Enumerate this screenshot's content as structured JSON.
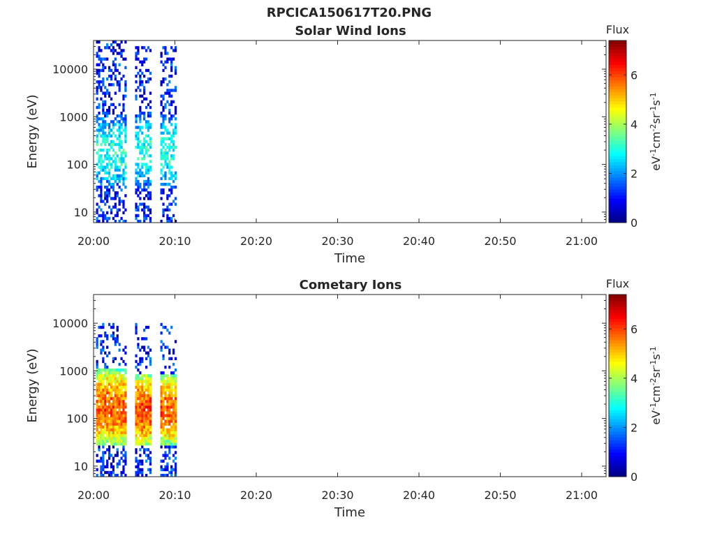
{
  "figure": {
    "title": "RPCICA150617T20.PNG"
  },
  "chart_data": [
    {
      "type": "heatmap",
      "title": "Solar Wind Ions",
      "xlabel": "Time",
      "ylabel": "Energy (eV)",
      "x_ticks": [
        "20:00",
        "20:10",
        "20:20",
        "20:30",
        "20:40",
        "20:50",
        "21:00"
      ],
      "x_range_minutes": [
        0,
        63
      ],
      "y_scale": "log",
      "y_ticks": [
        10,
        100,
        1000,
        10000
      ],
      "y_ticks_labels": [
        "10",
        "100",
        "1000",
        "10000"
      ],
      "y_range": [
        6,
        40000
      ],
      "colorbar": {
        "label": "Flux",
        "units": "eV-1cm-2sr-1s-1",
        "range": [
          0,
          7.4
        ],
        "ticks": [
          0,
          2,
          4,
          6
        ],
        "ticks_labels": [
          "0",
          "2",
          "4",
          "6"
        ],
        "colormap": "jet"
      },
      "bursts": [
        {
          "start_min": 0.3,
          "end_min": 4.0,
          "energy_min": 6,
          "energy_max": 35000,
          "core_min": 30,
          "core_max": 1000,
          "peak_flux": 3.0
        },
        {
          "start_min": 5.1,
          "end_min": 7.0,
          "energy_min": 6,
          "energy_max": 30000,
          "core_min": 30,
          "core_max": 1000,
          "peak_flux": 3.0
        },
        {
          "start_min": 8.2,
          "end_min": 10.2,
          "energy_min": 6,
          "energy_max": 30000,
          "core_min": 30,
          "core_max": 1000,
          "peak_flux": 3.0
        }
      ],
      "data_end_time": "20:10"
    },
    {
      "type": "heatmap",
      "title": "Cometary Ions",
      "xlabel": "Time",
      "ylabel": "Energy (eV)",
      "x_ticks": [
        "20:00",
        "20:10",
        "20:20",
        "20:30",
        "20:40",
        "20:50",
        "21:00"
      ],
      "x_range_minutes": [
        0,
        63
      ],
      "y_scale": "log",
      "y_ticks": [
        10,
        100,
        1000,
        10000
      ],
      "y_ticks_labels": [
        "10",
        "100",
        "1000",
        "10000"
      ],
      "y_range": [
        6,
        40000
      ],
      "colorbar": {
        "label": "Flux",
        "units": "eV-1cm-2sr-1s-1",
        "range": [
          0,
          7.4
        ],
        "ticks": [
          0,
          2,
          4,
          6
        ],
        "ticks_labels": [
          "0",
          "2",
          "4",
          "6"
        ],
        "colormap": "jet"
      },
      "bursts": [
        {
          "start_min": 0.3,
          "end_min": 4.0,
          "energy_min": 6,
          "energy_max": 10000,
          "core_min": 25,
          "core_max": 1000,
          "peak_flux": 5.8
        },
        {
          "start_min": 5.1,
          "end_min": 7.0,
          "energy_min": 6,
          "energy_max": 10000,
          "core_min": 25,
          "core_max": 800,
          "peak_flux": 6.0
        },
        {
          "start_min": 8.2,
          "end_min": 10.2,
          "energy_min": 6,
          "energy_max": 10000,
          "core_min": 25,
          "core_max": 800,
          "peak_flux": 5.8
        }
      ],
      "data_end_time": "20:10"
    }
  ]
}
